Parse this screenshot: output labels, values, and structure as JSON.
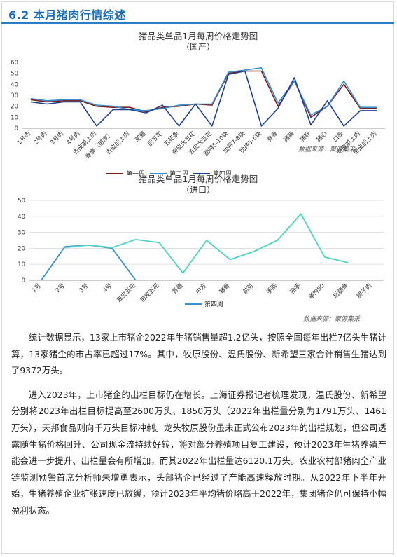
{
  "section": {
    "title": "6.2 本月猪肉行情综述"
  },
  "chart_data": [
    {
      "type": "line",
      "title": "猪品类单品1月每周价格走势图",
      "subtitle": "（国产）",
      "categories": [
        "1号肉",
        "2号肉",
        "3号肉",
        "4号肉",
        "去皮前上肉",
        "脊膘（带皮）",
        "去皮后上肉",
        "肥膘",
        "后五花",
        "五花条",
        "带皮大五花",
        "去皮大五花",
        "肋排5-10块",
        "肋排7-8块",
        "肋排5-6块",
        "脊骨",
        "猪蹄",
        "猪肝",
        "猪心",
        "口条",
        "带皮前上肉",
        "带皮后上肉"
      ],
      "ylim": [
        0,
        60
      ],
      "yticks": [
        0,
        10,
        20,
        30,
        40,
        50,
        60
      ],
      "series": [
        {
          "name": "第一周",
          "color": "#7a1f1f",
          "values": [
            26,
            24,
            25,
            25,
            20,
            19,
            19,
            15,
            19,
            20,
            22,
            21,
            50,
            52,
            52,
            20,
            43,
            10,
            20,
            40,
            18,
            18
          ]
        },
        {
          "name": "第二周",
          "color": "#3a8fcf",
          "values": [
            27,
            25,
            26,
            26,
            21,
            20,
            17,
            16,
            18,
            21,
            22,
            22,
            51,
            53,
            55,
            23,
            43,
            12,
            20,
            43,
            19,
            19
          ]
        },
        {
          "name": "第四周",
          "color": "#1f3f8f",
          "values": [
            24,
            22,
            24,
            24,
            2,
            17,
            17,
            14,
            21,
            2,
            22,
            2,
            49,
            52,
            2,
            18,
            46,
            3,
            25,
            2,
            16,
            16
          ]
        }
      ],
      "legend_position": "bottom",
      "source": "数据来源：聚源集采"
    },
    {
      "type": "line",
      "title": "猪品类单品1月每周价格走势图",
      "subtitle": "（进口）",
      "categories": [
        "1号",
        "2号",
        "3号",
        "4号",
        "去皮五花",
        "带皮五花",
        "背膘",
        "中方",
        "猪骨",
        "前肘",
        "手膀",
        "猪手",
        "猪肉80",
        "后腿骨",
        "腿子肉"
      ],
      "ylim": [
        0,
        50
      ],
      "yticks": [
        0,
        10,
        20,
        30,
        40,
        50
      ],
      "series": [
        {
          "name": "第四周",
          "color": "#3a8fcf",
          "values": [
            0,
            21,
            22,
            20,
            0,
            null,
            null,
            null,
            null,
            null,
            null,
            null,
            null,
            null,
            null
          ]
        },
        {
          "name": "",
          "color": "#4fd1c5",
          "values": [
            null,
            20.5,
            22,
            20.5,
            25.5,
            23.5,
            4.5,
            25,
            13,
            18,
            25,
            41.5,
            14.5,
            11,
            null
          ]
        }
      ],
      "legend_position": "bottom",
      "source": "数据来源：聚源集采"
    }
  ],
  "paragraphs": [
    "统计数据显示，13家上市猪企2022年生猪销售量超1.2亿头，按照全国每年出栏7亿头生猪计算，13家猪企的市占率已超过17%。其中，牧原股份、温氏股份、新希望三家合计销售生猪达到了9372万头。",
    "进入2023年，上市猪企的出栏目标仍在增长。上海证券报记者梳理发现，温氏股份、新希望分别将2023年出栏目标提高至2600万头、1850万头（2022年出栏量分别为1791万头、1461万头），天邦食品则向千万头目标冲刺。龙头牧原股份虽未正式公布2023年的出栏规划，但公司透露随生猪价格回升、公司现金流持续好转，将对部分养殖项目复工建设，预计2023年生猪养殖产能会进一步提升、出栏量会有所增加，而其2022年出栏量达6120.1万头。农业农村部猪肉全产业链监测预警首席分析师朱增勇表示，头部猪企已经过了产能高速释放时期。从2022年下半年开始，生猪养殖企业扩张速度已放缓，预计2023年平均猪价略高于2022年，集团猪企仍可保持小幅盈利状态。"
  ]
}
